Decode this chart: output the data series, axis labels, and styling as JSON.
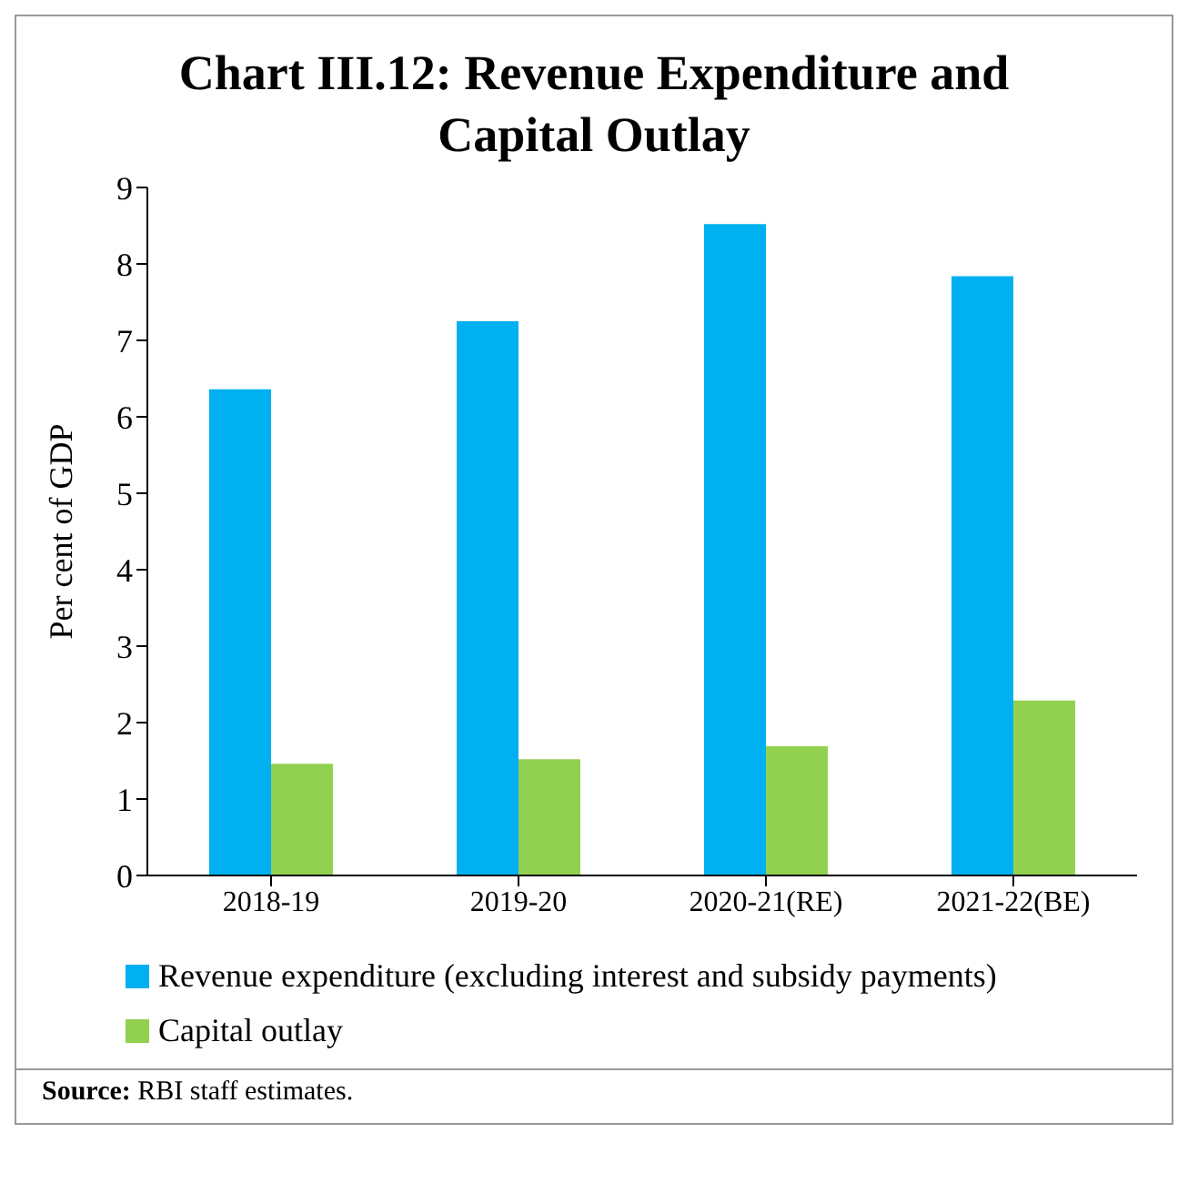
{
  "chart_data": {
    "type": "bar",
    "title": "Chart III.12: Revenue Expenditure and Capital Outlay",
    "ylabel": "Per cent of GDP",
    "categories": [
      "2018-19",
      "2019-20",
      "2020-21(RE)",
      "2021-22(BE)"
    ],
    "series": [
      {
        "name": "Revenue expenditure (excluding interest and subsidy payments)",
        "color": "#00b0f0",
        "values": [
          6.36,
          7.25,
          8.52,
          7.84
        ]
      },
      {
        "name": "Capital outlay",
        "color": "#92d050",
        "values": [
          1.46,
          1.52,
          1.69,
          2.29
        ]
      }
    ],
    "ylim": [
      0,
      9
    ],
    "yticks": [
      0,
      1,
      2,
      3,
      4,
      5,
      6,
      7,
      8,
      9
    ],
    "grid": false,
    "legend": "bottom",
    "annotations": [
      "Source: RBI staff estimates."
    ]
  }
}
